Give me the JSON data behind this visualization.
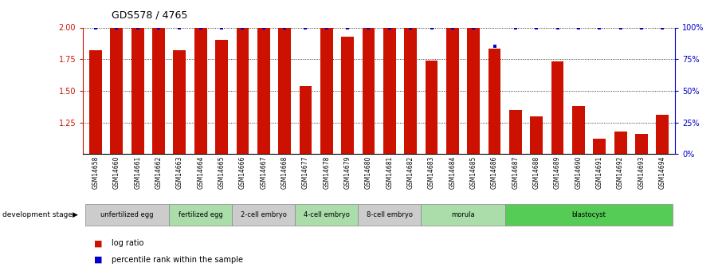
{
  "title": "GDS578 / 4765",
  "samples": [
    "GSM14658",
    "GSM14660",
    "GSM14661",
    "GSM14662",
    "GSM14663",
    "GSM14664",
    "GSM14665",
    "GSM14666",
    "GSM14667",
    "GSM14668",
    "GSM14677",
    "GSM14678",
    "GSM14679",
    "GSM14680",
    "GSM14681",
    "GSM14682",
    "GSM14683",
    "GSM14684",
    "GSM14685",
    "GSM14686",
    "GSM14687",
    "GSM14688",
    "GSM14689",
    "GSM14690",
    "GSM14691",
    "GSM14692",
    "GSM14693",
    "GSM14694"
  ],
  "log_ratio": [
    1.82,
    2.0,
    2.0,
    2.0,
    1.82,
    2.0,
    1.9,
    2.0,
    2.0,
    2.0,
    1.54,
    2.0,
    1.93,
    2.0,
    2.0,
    2.0,
    1.74,
    2.0,
    2.0,
    1.83,
    1.35,
    1.3,
    1.73,
    1.38,
    1.12,
    1.18,
    1.16,
    1.31
  ],
  "percentile_rank": [
    100,
    100,
    100,
    100,
    100,
    100,
    100,
    100,
    100,
    100,
    100,
    100,
    100,
    100,
    100,
    100,
    100,
    100,
    100,
    85,
    100,
    100,
    100,
    100,
    100,
    100,
    100,
    100
  ],
  "stage_groups": [
    {
      "label": "unfertilized egg",
      "start": 0,
      "end": 4,
      "color": "#cccccc"
    },
    {
      "label": "fertilized egg",
      "start": 4,
      "end": 7,
      "color": "#aaddaa"
    },
    {
      "label": "2-cell embryo",
      "start": 7,
      "end": 10,
      "color": "#cccccc"
    },
    {
      "label": "4-cell embryo",
      "start": 10,
      "end": 13,
      "color": "#aaddaa"
    },
    {
      "label": "8-cell embryo",
      "start": 13,
      "end": 16,
      "color": "#cccccc"
    },
    {
      "label": "morula",
      "start": 16,
      "end": 20,
      "color": "#aaddaa"
    },
    {
      "label": "blastocyst",
      "start": 20,
      "end": 28,
      "color": "#55cc55"
    }
  ],
  "bar_color": "#cc1100",
  "dot_color": "#0000cc",
  "ylim_left": [
    1.0,
    2.0
  ],
  "ylim_right": [
    0,
    100
  ],
  "y_ticks_left": [
    1.25,
    1.5,
    1.75,
    2.0
  ],
  "y_ticks_right": [
    0,
    25,
    50,
    75,
    100
  ],
  "dev_stage_label": "development stage",
  "legend_log_ratio": "log ratio",
  "legend_percentile": "percentile rank within the sample",
  "background_color": "#ffffff",
  "bar_width": 0.6
}
